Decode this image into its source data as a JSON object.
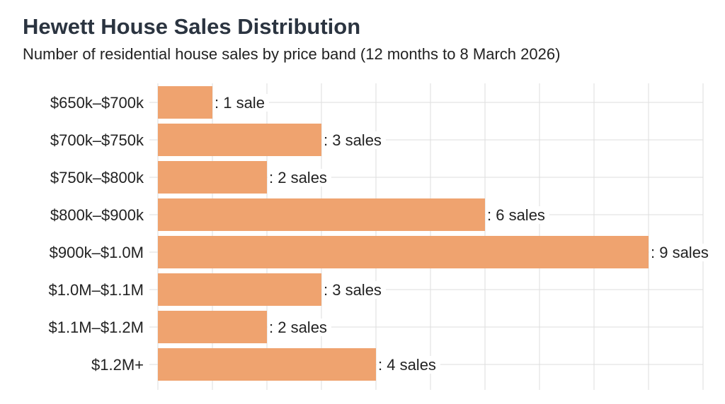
{
  "title": "Hewett House Sales Distribution",
  "subtitle": "Number of residential house sales by price band (12 months to 8 March 2026)",
  "chart_data": {
    "type": "bar",
    "orientation": "horizontal",
    "title": "Hewett House Sales Distribution",
    "subtitle": "Number of residential house sales by price band (12 months to 8 March 2026)",
    "categories": [
      "$650k–$700k",
      "$700k–$750k",
      "$750k–$800k",
      "$800k–$900k",
      "$900k–$1.0M",
      "$1.0M–$1.1M",
      "$1.1M–$1.2M",
      "$1.2M+"
    ],
    "values": [
      1,
      3,
      2,
      6,
      9,
      3,
      2,
      4
    ],
    "data_labels": [
      ": 1 sale",
      ": 3 sales",
      ": 2 sales",
      ": 6 sales",
      ": 9 sales",
      ": 3 sales",
      ": 2 sales",
      ": 4 sales"
    ],
    "xlabel": "",
    "ylabel": "",
    "xlim": [
      0,
      10
    ],
    "grid": true,
    "bar_color": "#EFA36F"
  }
}
